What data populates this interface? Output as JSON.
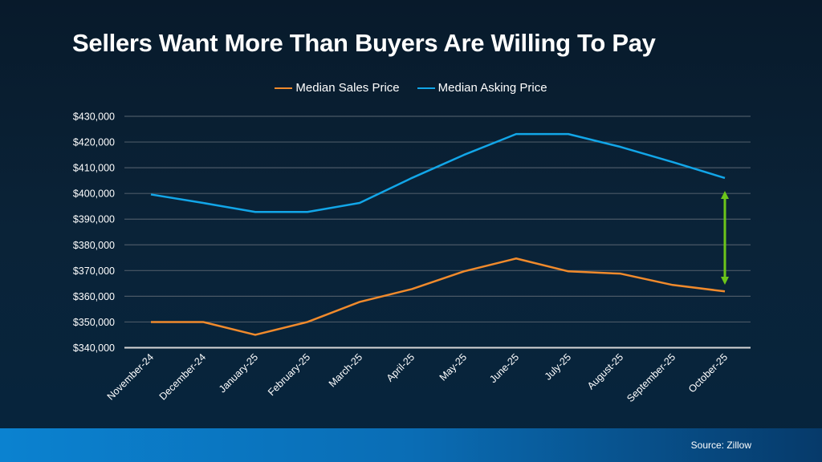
{
  "chart_data": {
    "type": "line",
    "title": "Sellers Want More Than Buyers Are Willing To Pay",
    "categories": [
      "November-24",
      "December-24",
      "January-25",
      "February-25",
      "March-25",
      "April-25",
      "May-25",
      "June-25",
      "July-25",
      "August-25",
      "September-25",
      "October-25"
    ],
    "series": [
      {
        "name": "Median Sales Price",
        "color": "#f08a2c",
        "values": [
          350000,
          350000,
          345000,
          350000,
          357800,
          362800,
          369700,
          374700,
          369700,
          368800,
          364400,
          361900
        ]
      },
      {
        "name": "Median Asking Price",
        "color": "#12a6e8",
        "values": [
          399600,
          396300,
          392800,
          392800,
          396300,
          406000,
          415000,
          423100,
          423100,
          418100,
          412200,
          406000
        ]
      }
    ],
    "ylim": [
      340000,
      430000
    ],
    "yticks": [
      340000,
      350000,
      360000,
      370000,
      380000,
      390000,
      400000,
      410000,
      420000,
      430000
    ],
    "ytick_labels": [
      "$340,000",
      "$350,000",
      "$360,000",
      "$370,000",
      "$380,000",
      "$390,000",
      "$400,000",
      "$410,000",
      "$420,000",
      "$430,000"
    ],
    "grid": true,
    "legend_position": "top",
    "annotation": {
      "type": "double-arrow",
      "category": "October-25",
      "color": "#6cc51a"
    }
  },
  "footer": {
    "source": "Source: Zillow"
  }
}
